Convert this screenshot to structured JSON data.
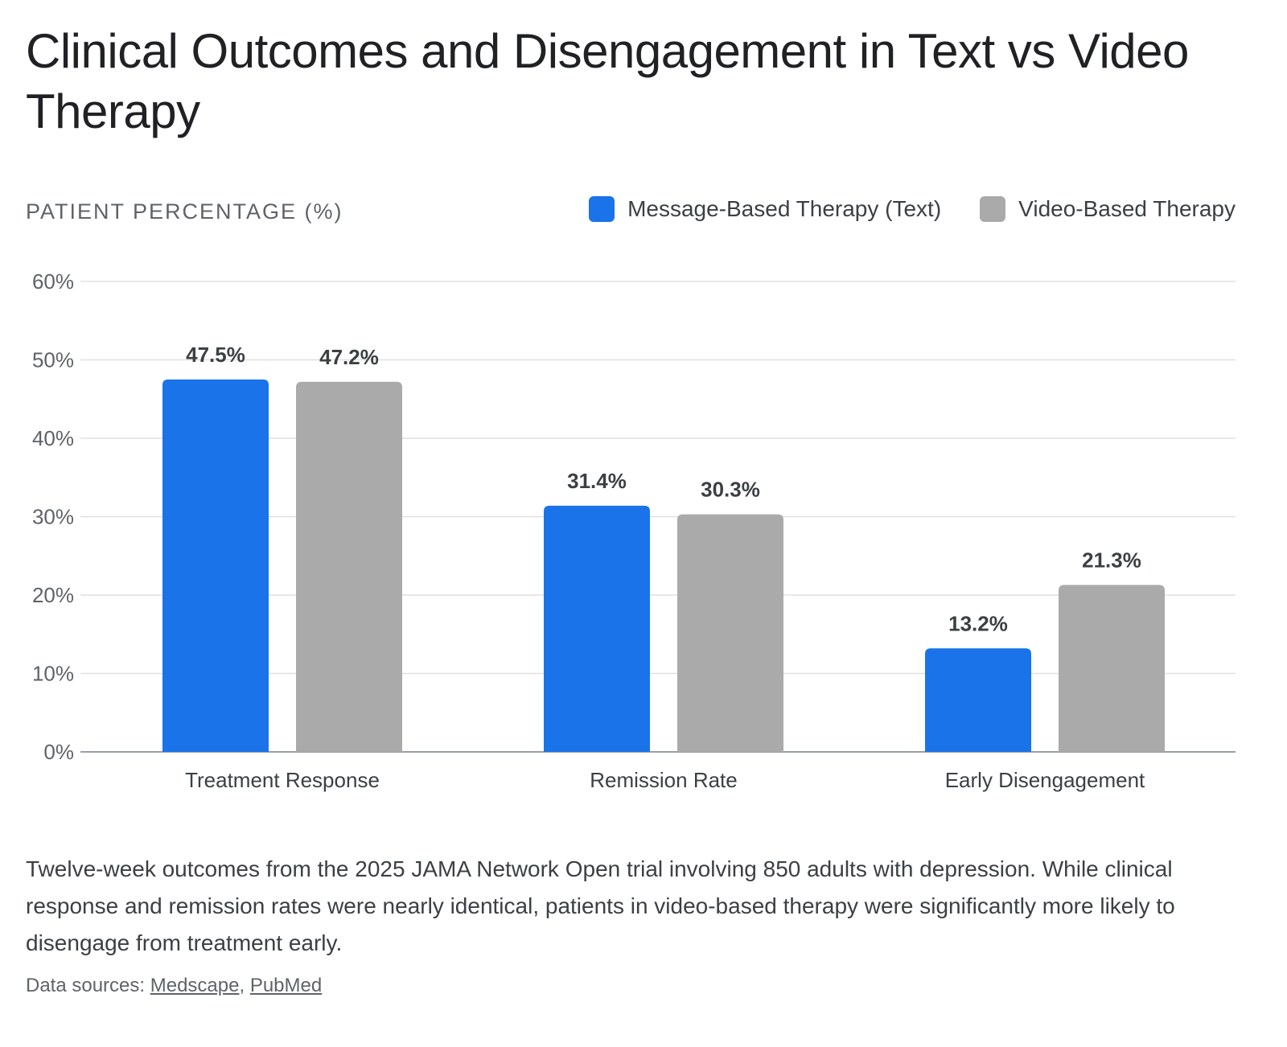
{
  "chart_data": {
    "type": "bar",
    "title": "Clinical Outcomes and Disengagement in Text vs Video Therapy",
    "ylabel": "PATIENT PERCENTAGE (%)",
    "xlabel": "",
    "categories": [
      "Treatment Response",
      "Remission Rate",
      "Early Disengagement"
    ],
    "series": [
      {
        "name": "Message-Based Therapy (Text)",
        "color": "#1a73e8",
        "values": [
          47.5,
          31.4,
          13.2
        ],
        "labels": [
          "47.5%",
          "31.4%",
          "13.2%"
        ]
      },
      {
        "name": "Video-Based Therapy",
        "color": "#aaaaaa",
        "values": [
          47.2,
          30.3,
          21.3
        ],
        "labels": [
          "47.2%",
          "30.3%",
          "21.3%"
        ]
      }
    ],
    "ylim": [
      0,
      60
    ],
    "yticks": [
      0,
      10,
      20,
      30,
      40,
      50,
      60
    ],
    "ytick_labels": [
      "0%",
      "10%",
      "20%",
      "30%",
      "40%",
      "50%",
      "60%"
    ],
    "grid": true,
    "legend_position": "top-right"
  },
  "caption": "Twelve-week outcomes from the 2025 JAMA Network Open trial involving 850 adults with depression. While clinical response and remission rates were nearly identical, patients in video-based therapy were significantly more likely to disengage from treatment early.",
  "sources": {
    "prefix": "Data sources: ",
    "links": [
      "Medscape",
      "PubMed"
    ],
    "separator": ", "
  }
}
